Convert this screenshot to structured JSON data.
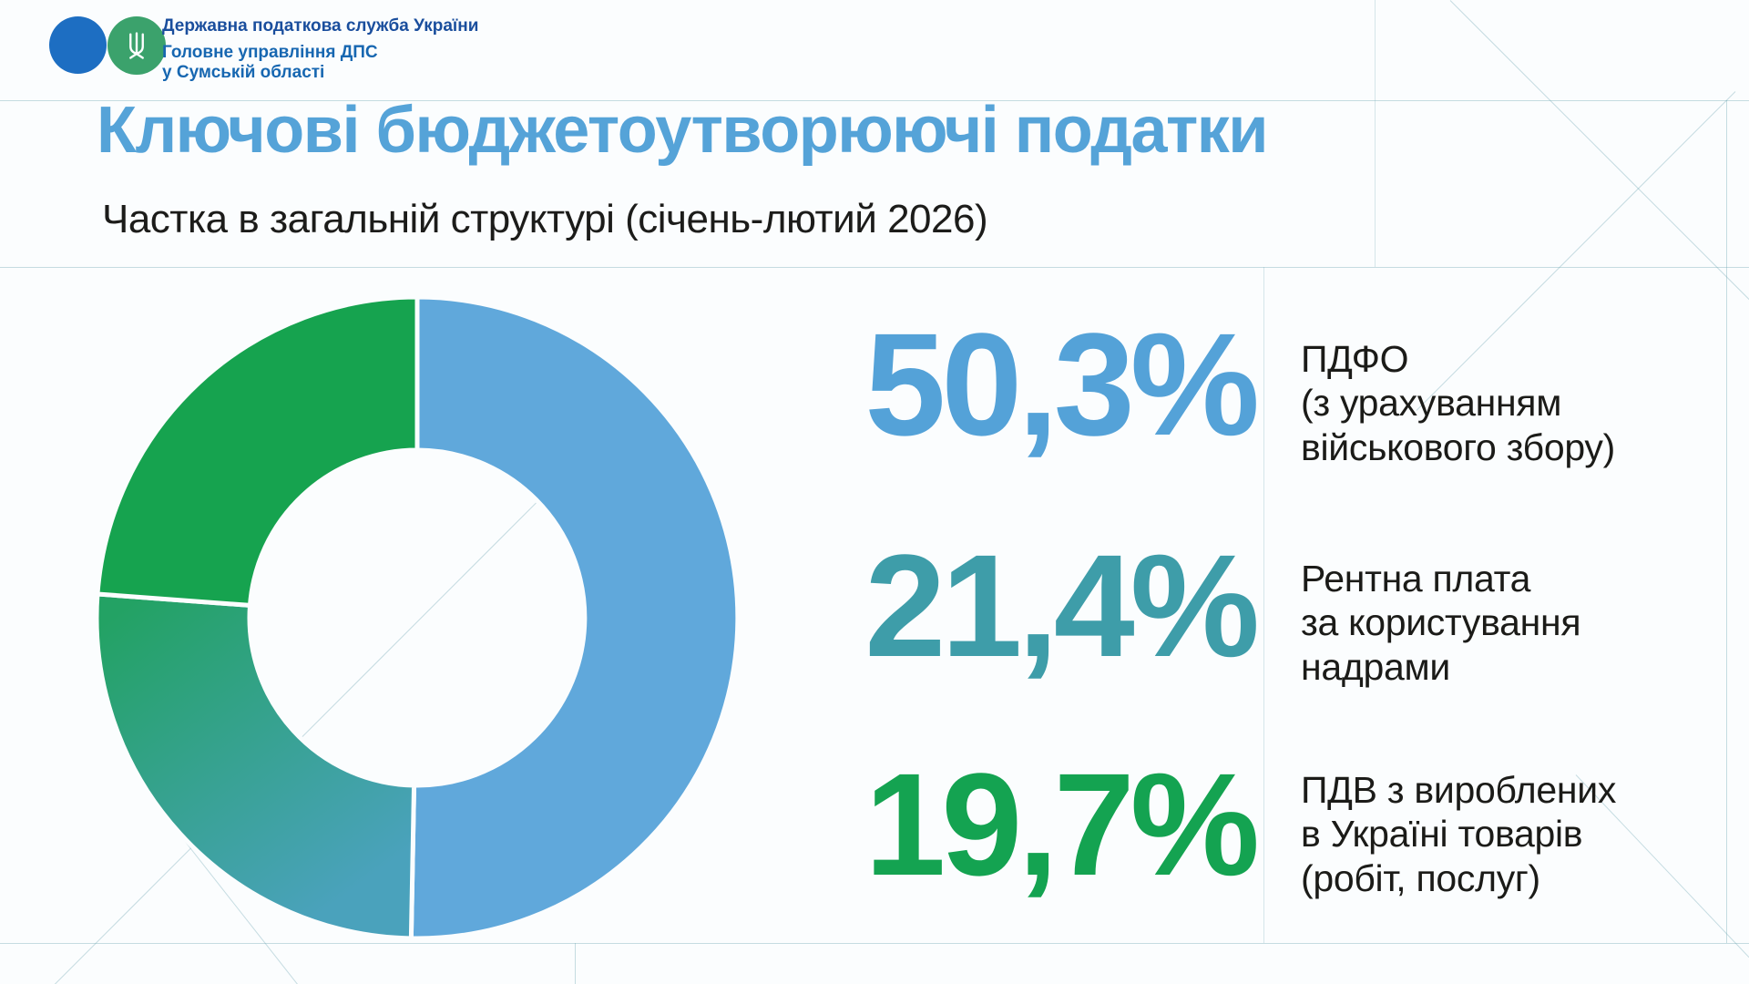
{
  "header": {
    "org_line1": "Державна податкова служба України",
    "org_line2": "Головне управління ДПС",
    "org_line3": "у Сумській області"
  },
  "title": "Ключові бюджетоутворюючі податки",
  "subtitle": "Частка в загальній структурі (січень-лютий 2026)",
  "colors": {
    "background": "#FBFDFE",
    "title_blue": "#55A3D8",
    "org_line1_blue": "#1A4E9D",
    "org_line23_blue": "#1767B1",
    "logo_blue_circle": "#1D6EC2",
    "logo_green_circle": "#3BA26C",
    "trident_white": "#FFFFFF",
    "text_dark": "#1B1B18"
  },
  "chart_data": {
    "type": "pie",
    "style": "donut",
    "title": "Ключові бюджетоутворюючі податки",
    "subtitle": "Частка в загальній структурі (січень-лютий 2026)",
    "legend_position": "right",
    "start_angle_deg": 0,
    "direction": "clockwise",
    "segments_stretched_to_full_circle": true,
    "series": [
      {
        "label": "ПДФО (з урахуванням військового збору)",
        "value": 50.3,
        "display": "50,3%",
        "color": "#60A8DB"
      },
      {
        "label": "Рентна плата за користування надрами",
        "value": 21.4,
        "display": "21,4%",
        "color": "#3E9DA9",
        "gradient": [
          "#4AA2BC",
          "#23A264"
        ]
      },
      {
        "label": "ПДВ з вироблених в Україні товарів (робіт, послуг)",
        "value": 19.7,
        "display": "19,7%",
        "color": "#16A34F"
      }
    ]
  },
  "stats": {
    "items": [
      {
        "value": "50,3%",
        "color": "#54A2D8",
        "label_lines": [
          "ПДФО",
          "(з урахуванням",
          "військового збору)"
        ]
      },
      {
        "value": "21,4%",
        "color": "#3E9DA9",
        "label_lines": [
          "Рентна плата",
          "за користування",
          "надрами"
        ]
      },
      {
        "value": "19,7%",
        "color": "#14A351",
        "label_lines": [
          "ПДВ з вироблених",
          "в Україні товарів",
          "(робіт, послуг)"
        ]
      }
    ]
  }
}
